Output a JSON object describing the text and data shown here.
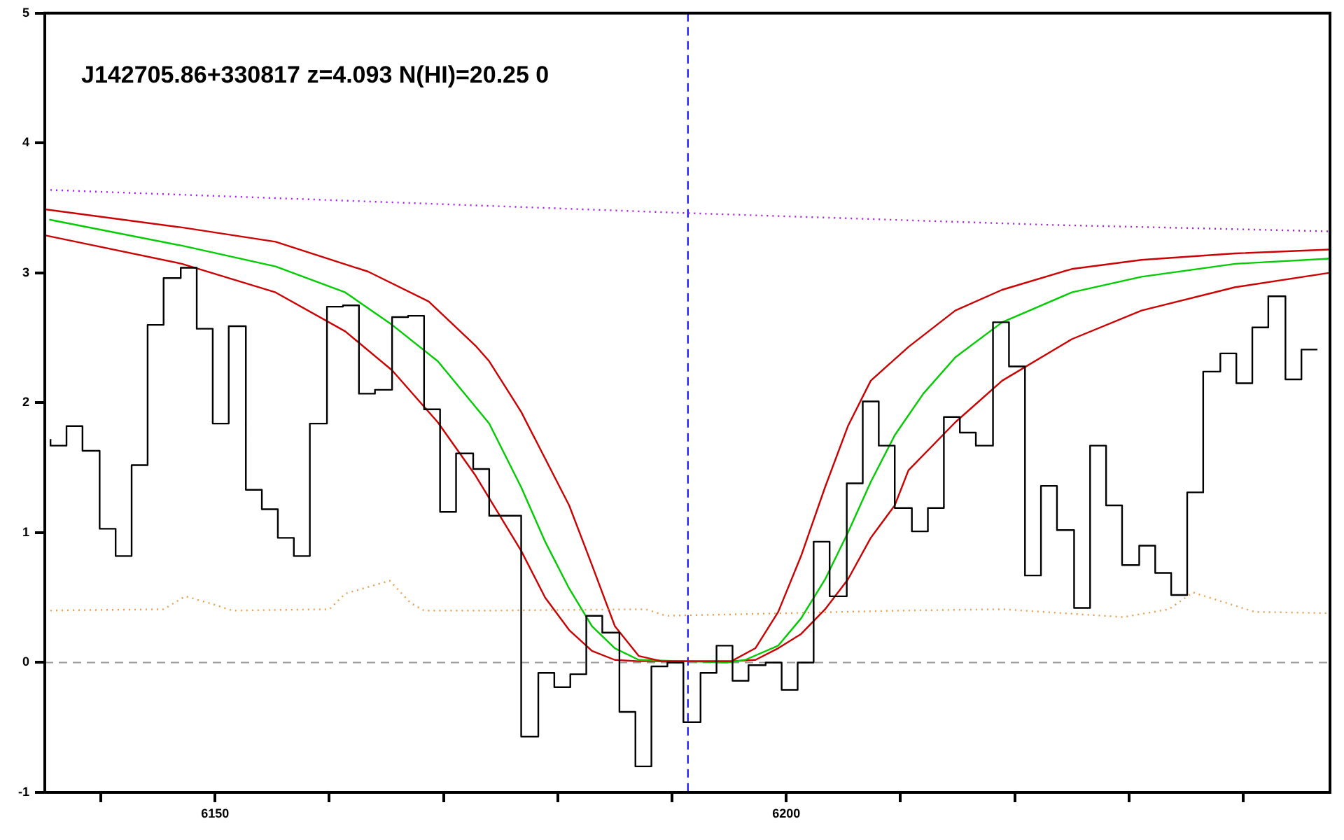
{
  "chart_data": {
    "type": "line",
    "title": "J142705.86+330817 z=4.093 N(HI)=20.25 0",
    "xlim": [
      6135.1,
      6247.6
    ],
    "ylim": [
      -1,
      5
    ],
    "xticks": [
      {
        "value": 6140,
        "label": null
      },
      6150,
      {
        "value": 6160,
        "label": null
      },
      {
        "value": 6170,
        "label": null
      },
      {
        "value": 6180,
        "label": null
      },
      {
        "value": 6190,
        "label": null
      },
      6200,
      {
        "value": 6210,
        "label": null
      },
      {
        "value": 6220,
        "label": null
      },
      {
        "value": 6230,
        "label": null
      },
      {
        "value": 6240,
        "label": null
      }
    ],
    "yticks": [
      -1,
      0,
      1,
      2,
      3,
      4,
      5
    ],
    "series": [
      {
        "type": "step",
        "color": "#000000",
        "x": [
          6135.6,
          6137.0,
          6138.4,
          6139.9,
          6141.3,
          6142.7,
          6144.1,
          6145.5,
          6147.0,
          6148.4,
          6149.8,
          6151.2,
          6152.7,
          6154.1,
          6155.5,
          6156.9,
          6158.3,
          6159.8,
          6161.2,
          6162.6,
          6164.0,
          6165.5,
          6166.9,
          6168.3,
          6169.7,
          6171.1,
          6172.6,
          6174.0,
          6175.4,
          6176.8,
          6178.3,
          6179.7,
          6181.1,
          6182.5,
          6183.9,
          6185.4,
          6186.8,
          6188.2,
          6189.6,
          6191.0,
          6192.5,
          6193.9,
          6195.3,
          6196.7,
          6198.2,
          6199.6,
          6201.0,
          6202.4,
          6203.8,
          6205.3,
          6206.7,
          6208.1,
          6209.5,
          6211.0,
          6212.4,
          6213.8,
          6215.2,
          6216.6,
          6218.1,
          6219.5,
          6220.9,
          6222.3,
          6223.7,
          6225.2,
          6226.6,
          6228.0,
          6229.4,
          6230.9,
          6232.3,
          6233.7,
          6235.1,
          6236.5,
          6238.0,
          6239.4,
          6240.8,
          6242.2,
          6243.7,
          6245.1,
          6246.5
        ],
        "values": [
          1.72,
          1.67,
          1.82,
          1.63,
          1.03,
          0.82,
          1.52,
          2.6,
          2.96,
          3.04,
          2.57,
          1.84,
          2.59,
          1.33,
          1.18,
          0.96,
          0.82,
          1.84,
          2.74,
          2.75,
          2.07,
          2.1,
          2.66,
          2.67,
          1.95,
          1.16,
          1.61,
          1.49,
          1.13,
          1.13,
          -0.57,
          -0.08,
          -0.19,
          -0.09,
          0.36,
          0.23,
          -0.38,
          -0.8,
          -0.03,
          0,
          -0.46,
          -0.08,
          0.13,
          -0.14,
          -0.02,
          0,
          -0.21,
          0,
          0.93,
          0.51,
          1.38,
          2.01,
          1.67,
          1.19,
          1.01,
          1.19,
          1.89,
          1.77,
          1.67,
          2.62,
          2.28,
          0.67,
          1.36,
          1.02,
          0.42,
          1.67,
          1.21,
          0.75,
          0.9,
          0.69,
          0.52,
          1.31,
          2.24,
          2.38,
          2.15,
          2.58,
          2.82,
          2.18,
          2.41
        ]
      },
      {
        "type": "line",
        "color": "#a020f0",
        "line_style": "dotted",
        "x": [
          6135.1,
          6163.4,
          6191.5,
          6223.0,
          6247.6
        ],
        "values": [
          3.64,
          3.55,
          3.46,
          3.37,
          3.32
        ]
      },
      {
        "type": "line",
        "color": "#e8a050",
        "line_style": "dotted",
        "x": [
          6135.1,
          6145.5,
          6147.4,
          6149.8,
          6151.5,
          6160.0,
          6161.4,
          6165.3,
          6167.1,
          6168.3,
          6174.0,
          6187.7,
          6189.5,
          6200.0,
          6210.0,
          6219.0,
          6229.5,
          6233.5,
          6235.6,
          6241.0,
          6247.6
        ],
        "values": [
          0.4,
          0.41,
          0.51,
          0.45,
          0.4,
          0.41,
          0.53,
          0.63,
          0.46,
          0.4,
          0.4,
          0.41,
          0.36,
          0.38,
          0.4,
          0.41,
          0.35,
          0.41,
          0.54,
          0.39,
          0.38
        ]
      },
      {
        "type": "line",
        "color": "#cc0000",
        "x": [
          6135.1,
          6147.1,
          6155.3,
          6163.4,
          6168.7,
          6172.8,
          6174.0,
          6176.8,
          6181.0,
          6183.0,
          6185.0,
          6187.1,
          6189.1,
          6195.2,
          6197.3,
          6199.3,
          6201.3,
          6203.4,
          6205.4,
          6207.4,
          6210.7,
          6214.8,
          6218.9,
          6225.0,
          6231.1,
          6239.3,
          6247.5
        ],
        "values": [
          3.49,
          3.35,
          3.24,
          3.01,
          2.78,
          2.44,
          2.32,
          1.93,
          1.21,
          0.75,
          0.28,
          0.05,
          0.01,
          0.01,
          0.11,
          0.39,
          0.82,
          1.35,
          1.82,
          2.17,
          2.43,
          2.71,
          2.87,
          3.03,
          3.1,
          3.15,
          3.18
        ]
      },
      {
        "type": "line",
        "color": "#00cc00",
        "x": [
          6135.5,
          6147.1,
          6155.3,
          6161.4,
          6165.5,
          6169.5,
          6174.0,
          6176.8,
          6178.9,
          6181.0,
          6183.0,
          6185.0,
          6187.1,
          6194.8,
          6196.4,
          6199.3,
          6201.3,
          6203.4,
          6205.4,
          6207.4,
          6209.5,
          6212.0,
          6214.8,
          6218.9,
          6225.0,
          6231.1,
          6239.3,
          6247.5
        ],
        "values": [
          3.41,
          3.21,
          3.05,
          2.85,
          2.6,
          2.32,
          1.84,
          1.35,
          0.93,
          0.57,
          0.28,
          0.11,
          0.02,
          0,
          0.02,
          0.13,
          0.34,
          0.64,
          1.0,
          1.39,
          1.75,
          2.07,
          2.35,
          2.62,
          2.85,
          2.97,
          3.07,
          3.11
        ]
      },
      {
        "type": "line",
        "color": "#cc0000",
        "x": [
          6135.1,
          6147.1,
          6155.3,
          6161.4,
          6165.5,
          6169.5,
          6172.8,
          6176.8,
          6178.9,
          6181.0,
          6183.0,
          6185.0,
          6187.1,
          6195.2,
          6197.3,
          6199.3,
          6201.3,
          6203.4,
          6205.4,
          6207.4,
          6209.5,
          6210.7,
          6214.8,
          6218.9,
          6225.0,
          6231.1,
          6239.3,
          6247.5
        ],
        "values": [
          3.29,
          3.07,
          2.85,
          2.55,
          2.25,
          1.85,
          1.44,
          0.86,
          0.5,
          0.25,
          0.09,
          0.02,
          0.01,
          0.01,
          0.02,
          0.11,
          0.22,
          0.41,
          0.64,
          0.96,
          1.21,
          1.48,
          1.85,
          2.17,
          2.49,
          2.71,
          2.89,
          3.0
        ]
      }
    ],
    "ref_lines": [
      {
        "axis": "y",
        "value": 0,
        "color": "#999999",
        "line_style": "dashed"
      },
      {
        "axis": "x",
        "value": 6191.4,
        "color": "#0000ff",
        "line_style": "dashed"
      }
    ]
  }
}
